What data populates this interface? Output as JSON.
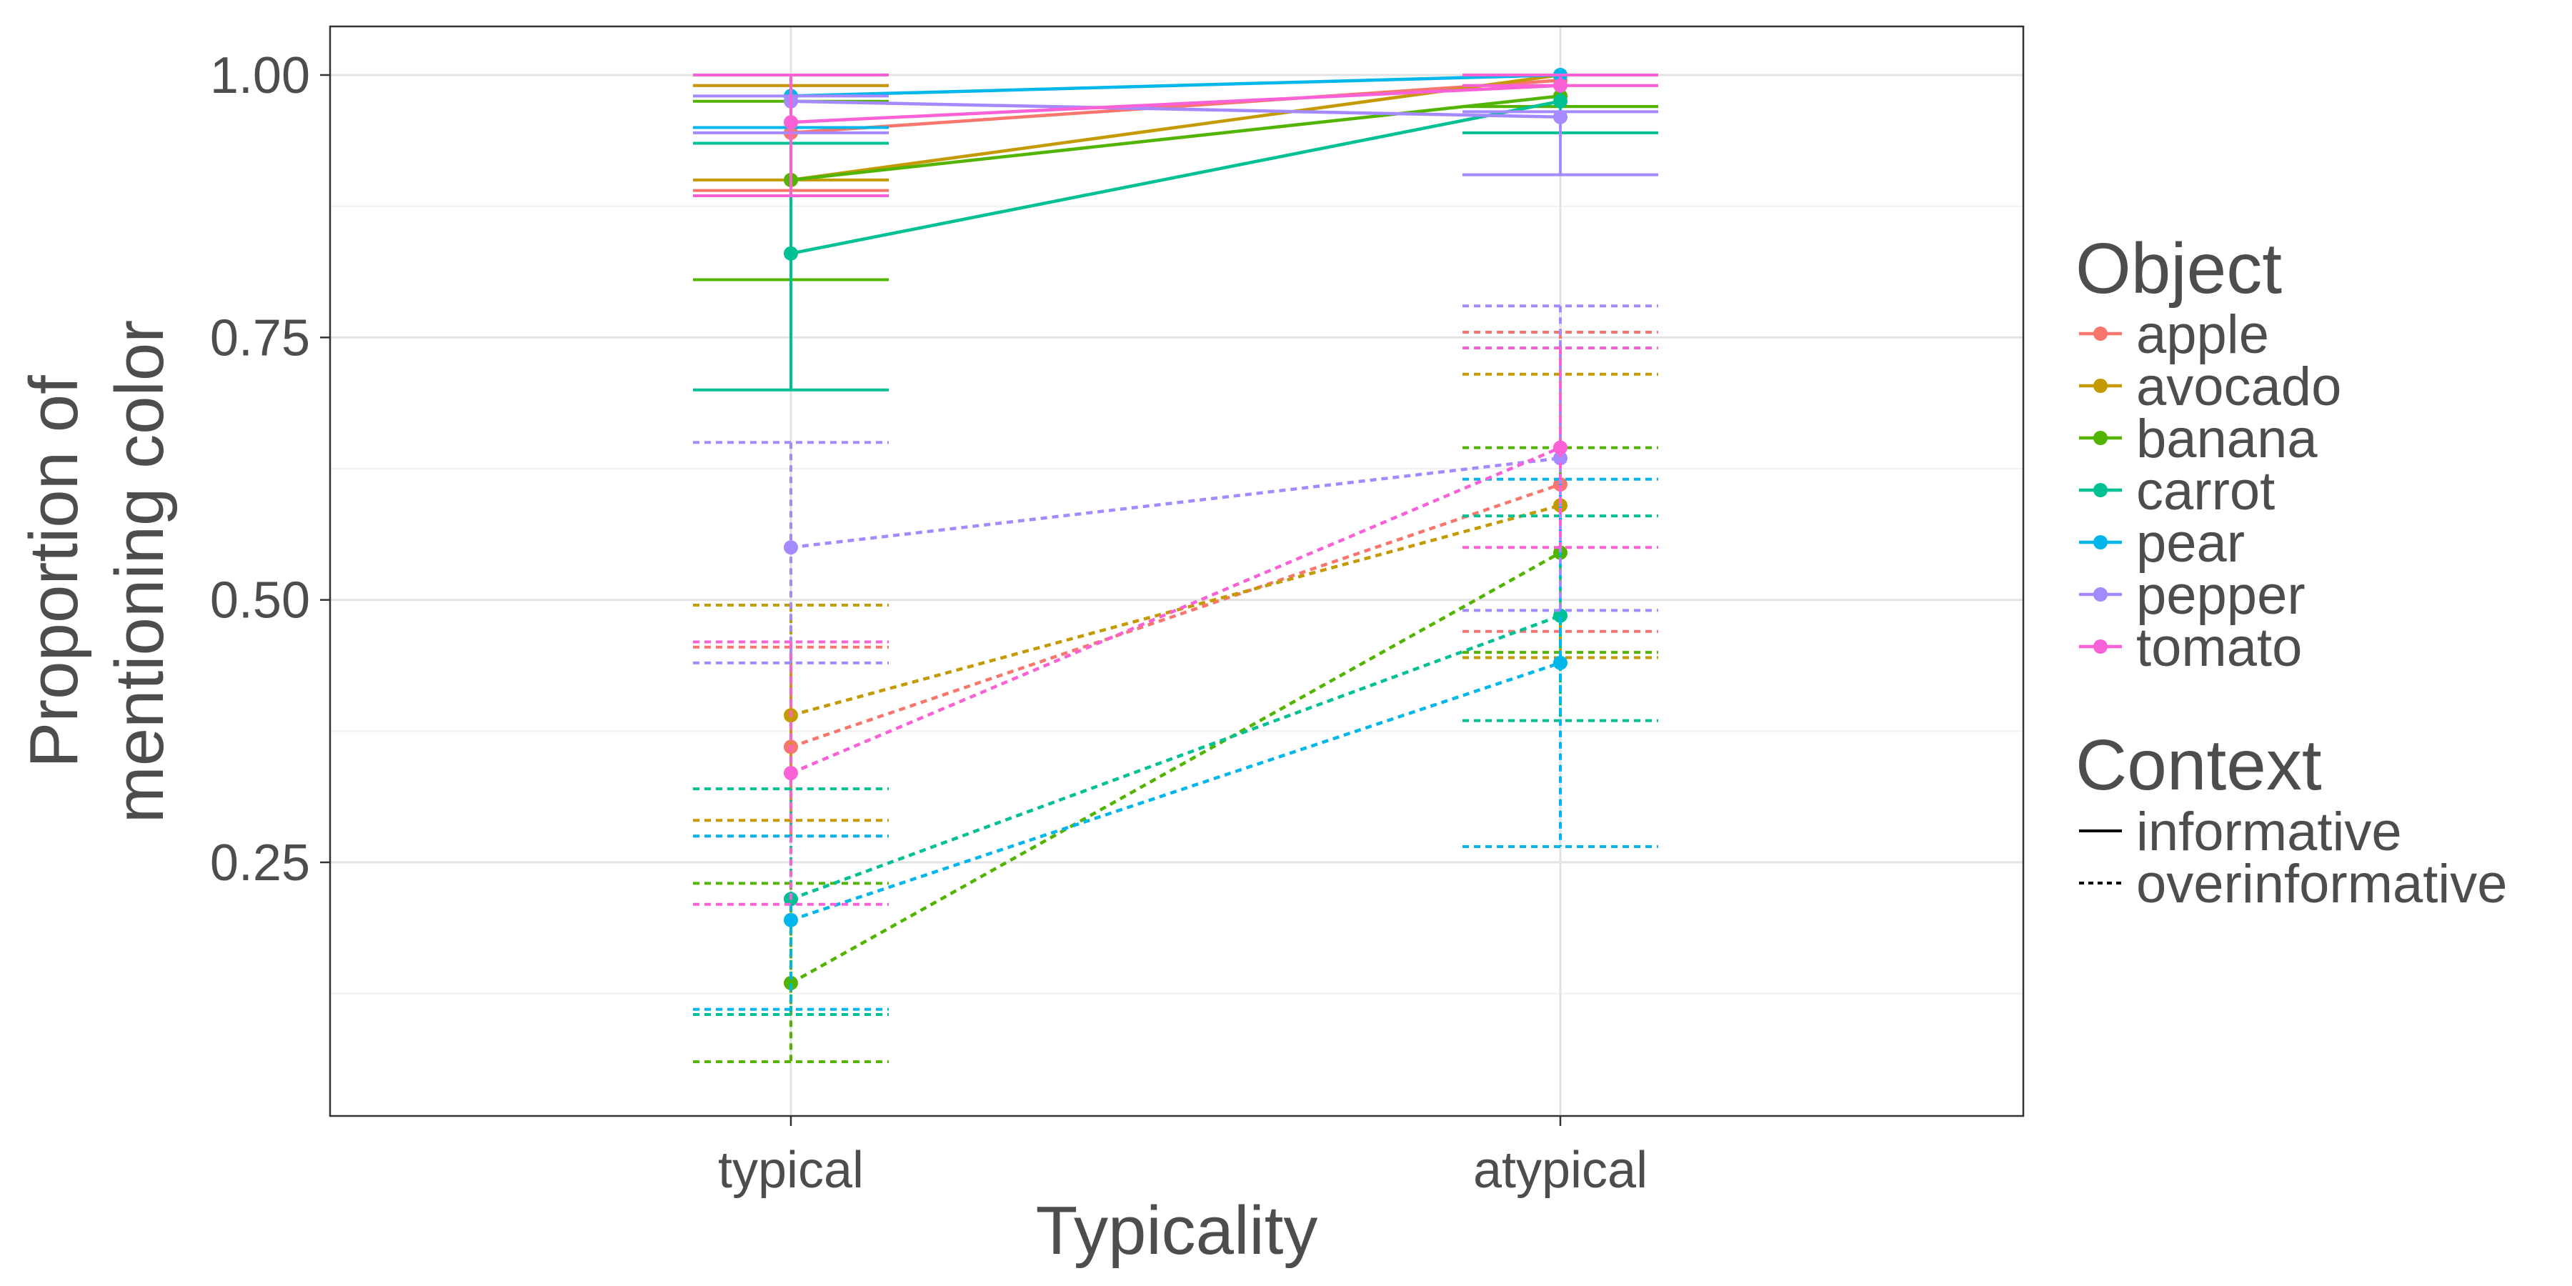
{
  "chart_data": {
    "type": "line",
    "xlabel": "Typicality",
    "ylabel_lines": [
      "Proportion of",
      "mentioning color"
    ],
    "categories": [
      "typical",
      "atypical"
    ],
    "ylim": [
      0.0,
      1.05
    ],
    "yticks": [
      0.25,
      0.5,
      0.75,
      1.0
    ],
    "ytick_labels": [
      "0.25",
      "0.50",
      "0.75",
      "1.00"
    ],
    "grid": true,
    "legend": {
      "position": "right",
      "object_title": "Object",
      "context_title": "Context",
      "objects": [
        "apple",
        "avocado",
        "banana",
        "carrot",
        "pear",
        "pepper",
        "tomato"
      ],
      "contexts": [
        {
          "label": "informative",
          "dash": "solid"
        },
        {
          "label": "overinformative",
          "dash": "dotted"
        }
      ]
    },
    "colors": {
      "apple": "#F8766D",
      "avocado": "#C49A00",
      "banana": "#53B400",
      "carrot": "#00C094",
      "pear": "#00B6EB",
      "pepper": "#A58AFF",
      "tomato": "#FB61D7"
    },
    "series": [
      {
        "object": "apple",
        "context": "informative",
        "values": [
          0.945,
          0.995
        ],
        "lower": [
          0.89,
          0.99
        ],
        "upper": [
          0.99,
          1.0
        ]
      },
      {
        "object": "avocado",
        "context": "informative",
        "values": [
          0.9,
          1.0
        ],
        "lower": [
          0.9,
          1.0
        ],
        "upper": [
          0.99,
          1.0
        ]
      },
      {
        "object": "banana",
        "context": "informative",
        "values": [
          0.9,
          0.98
        ],
        "lower": [
          0.805,
          0.97
        ],
        "upper": [
          0.975,
          0.97
        ]
      },
      {
        "object": "carrot",
        "context": "informative",
        "values": [
          0.83,
          0.975
        ],
        "lower": [
          0.7,
          0.945
        ],
        "upper": [
          0.935,
          1.0
        ]
      },
      {
        "object": "pear",
        "context": "informative",
        "values": [
          0.98,
          1.0
        ],
        "lower": [
          0.95,
          1.0
        ],
        "upper": [
          1.0,
          1.0
        ]
      },
      {
        "object": "pepper",
        "context": "informative",
        "values": [
          0.975,
          0.96
        ],
        "lower": [
          0.945,
          0.905
        ],
        "upper": [
          0.98,
          0.965
        ]
      },
      {
        "object": "tomato",
        "context": "informative",
        "values": [
          0.955,
          0.99
        ],
        "lower": [
          0.885,
          0.99
        ],
        "upper": [
          1.0,
          1.0
        ]
      },
      {
        "object": "apple",
        "context": "overinformative",
        "values": [
          0.36,
          0.61
        ],
        "lower": [
          0.275,
          0.47
        ],
        "upper": [
          0.455,
          0.755
        ]
      },
      {
        "object": "avocado",
        "context": "overinformative",
        "values": [
          0.39,
          0.59
        ],
        "lower": [
          0.29,
          0.445
        ],
        "upper": [
          0.495,
          0.715
        ]
      },
      {
        "object": "banana",
        "context": "overinformative",
        "values": [
          0.135,
          0.545
        ],
        "lower": [
          0.06,
          0.45
        ],
        "upper": [
          0.23,
          0.645
        ]
      },
      {
        "object": "carrot",
        "context": "overinformative",
        "values": [
          0.215,
          0.485
        ],
        "lower": [
          0.105,
          0.385
        ],
        "upper": [
          0.32,
          0.58
        ]
      },
      {
        "object": "pear",
        "context": "overinformative",
        "values": [
          0.195,
          0.44
        ],
        "lower": [
          0.11,
          0.265
        ],
        "upper": [
          0.275,
          0.615
        ]
      },
      {
        "object": "pepper",
        "context": "overinformative",
        "values": [
          0.55,
          0.635
        ],
        "lower": [
          0.44,
          0.49
        ],
        "upper": [
          0.65,
          0.78
        ]
      },
      {
        "object": "tomato",
        "context": "overinformative",
        "values": [
          0.335,
          0.645
        ],
        "lower": [
          0.21,
          0.55
        ],
        "upper": [
          0.46,
          0.74
        ]
      }
    ]
  }
}
